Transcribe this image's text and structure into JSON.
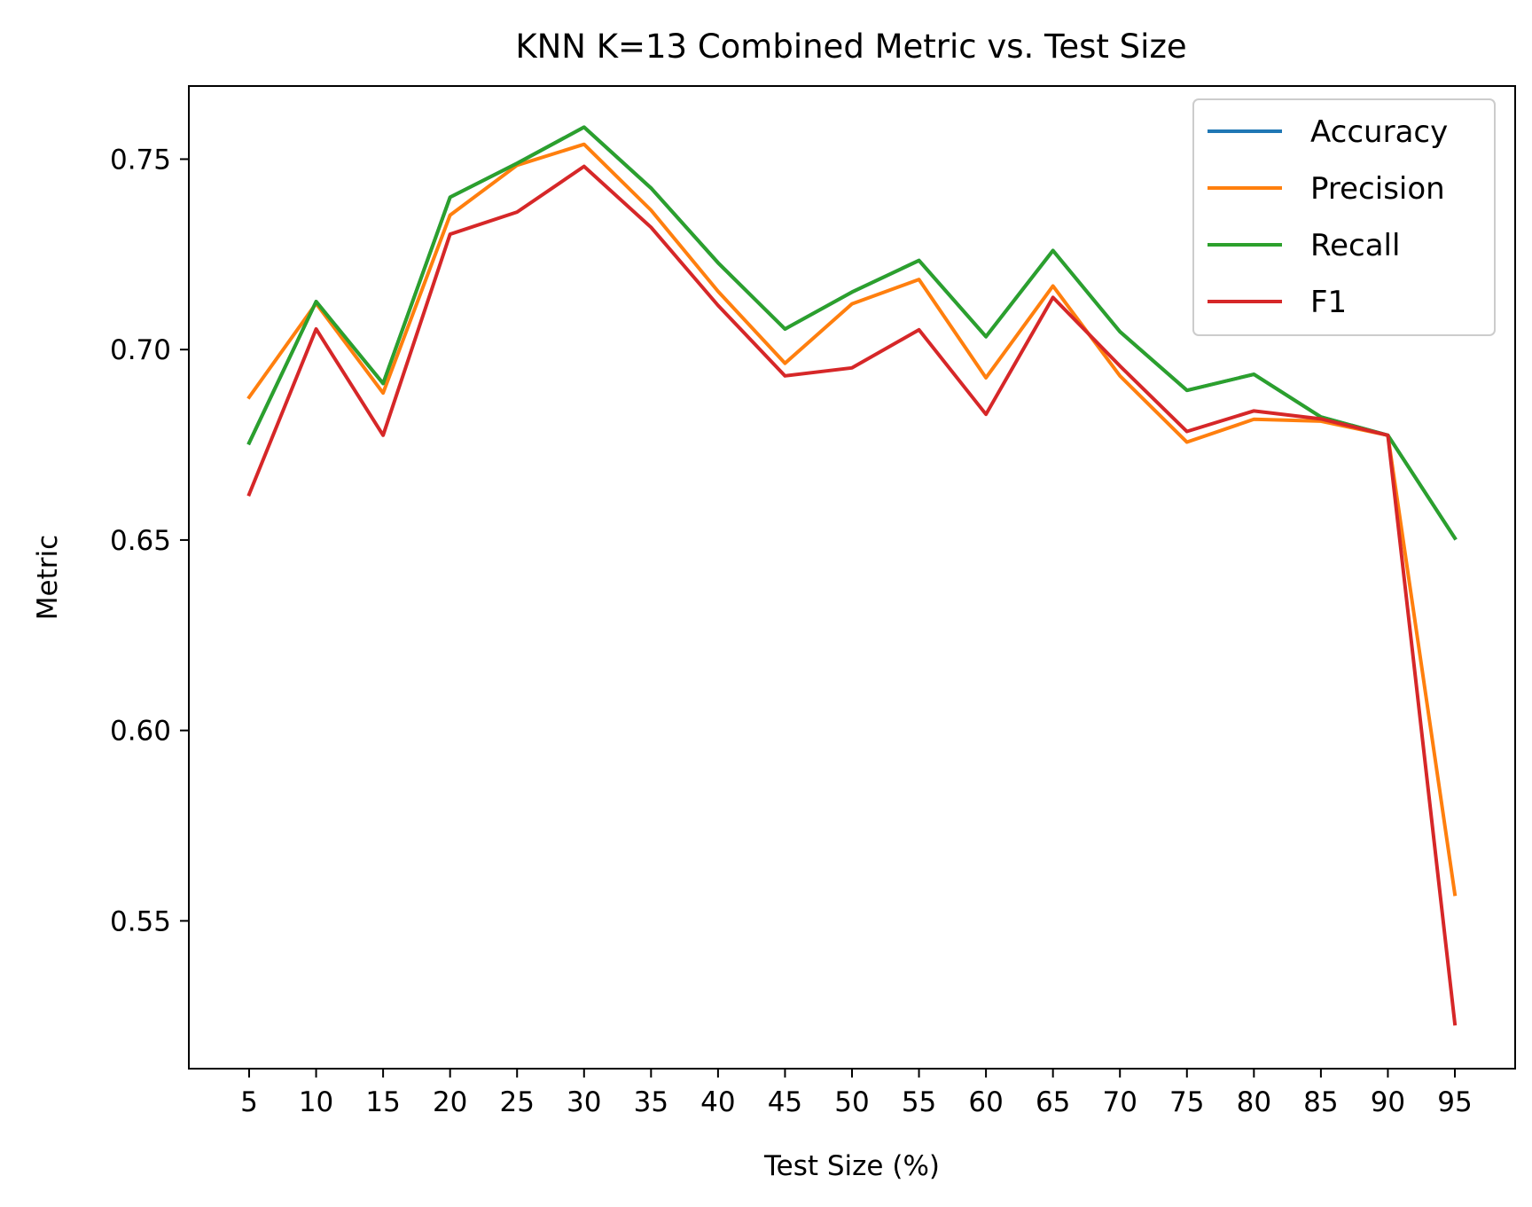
{
  "chart_data": {
    "type": "line",
    "title": "KNN K=13  Combined Metric vs. Test Size",
    "xlabel": "Test Size (%)",
    "ylabel": "Metric",
    "x": [
      5,
      10,
      15,
      20,
      25,
      30,
      35,
      40,
      45,
      50,
      55,
      60,
      65,
      70,
      75,
      80,
      85,
      90,
      95
    ],
    "xlim": [
      0.5,
      99.5
    ],
    "ylim": [
      0.5112,
      0.7692
    ],
    "yticks": [
      "0.55",
      "0.60",
      "0.65",
      "0.70",
      "0.75"
    ],
    "grid": false,
    "legend_position": "top-right",
    "series": [
      {
        "name": "Accuracy",
        "color": "#1f77b4",
        "values": [
          0.6755,
          0.7126,
          0.6911,
          0.74,
          0.7489,
          0.7584,
          0.7424,
          0.7228,
          0.7054,
          0.7151,
          0.7234,
          0.7034,
          0.726,
          0.7047,
          0.6893,
          0.6935,
          0.6823,
          0.6775,
          0.6505
        ]
      },
      {
        "name": "Precision",
        "color": "#ff7f0e",
        "values": [
          0.6875,
          0.7121,
          0.6886,
          0.7353,
          0.7484,
          0.7539,
          0.7366,
          0.7153,
          0.6964,
          0.712,
          0.7184,
          0.6926,
          0.7167,
          0.6931,
          0.6757,
          0.6817,
          0.6812,
          0.6775,
          0.557
        ]
      },
      {
        "name": "Recall",
        "color": "#2ca02c",
        "values": [
          0.6755,
          0.7126,
          0.6911,
          0.74,
          0.7489,
          0.7584,
          0.7424,
          0.7228,
          0.7054,
          0.7151,
          0.7234,
          0.7034,
          0.726,
          0.7047,
          0.6893,
          0.6935,
          0.6823,
          0.6775,
          0.6505
        ]
      },
      {
        "name": "F1",
        "color": "#d62728",
        "values": [
          0.662,
          0.7054,
          0.6775,
          0.7303,
          0.7361,
          0.7481,
          0.7321,
          0.7116,
          0.6931,
          0.6952,
          0.7052,
          0.683,
          0.7137,
          0.6957,
          0.6785,
          0.6839,
          0.6818,
          0.6775,
          0.523
        ]
      }
    ]
  }
}
